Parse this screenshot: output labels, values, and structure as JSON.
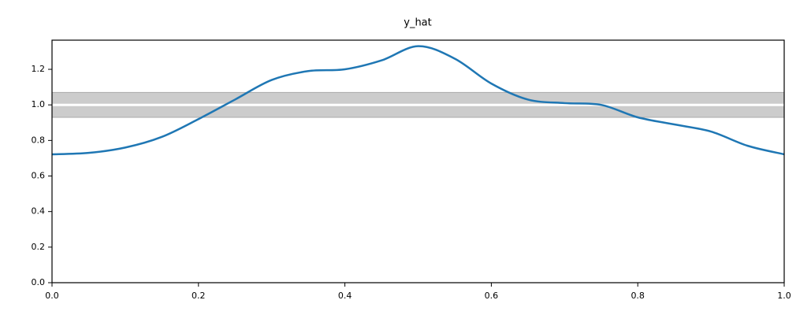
{
  "chart_data": {
    "type": "line",
    "title": "y_hat",
    "x": [
      0,
      0.05,
      0.1,
      0.15,
      0.2,
      0.25,
      0.3,
      0.35,
      0.4,
      0.45,
      0.5,
      0.55,
      0.6,
      0.65,
      0.7,
      0.75,
      0.8,
      0.85,
      0.9,
      0.95,
      1.0
    ],
    "series": [
      {
        "color": "#1f77b4",
        "values": [
          0.722,
          0.73,
          0.76,
          0.82,
          0.92,
          1.03,
          1.14,
          1.19,
          1.2,
          1.25,
          1.33,
          1.26,
          1.12,
          1.03,
          1.01,
          1.0,
          0.93,
          0.89,
          0.85,
          0.77,
          0.722
        ]
      }
    ],
    "band": [
      0.93,
      1.07
    ],
    "band_color": "#cccccc",
    "reference": 1,
    "reference_color": "#ffffff",
    "xlim": [
      0,
      1
    ],
    "ylim": [
      0,
      1.364
    ],
    "xticks": [
      {
        "value": 0,
        "label": "0.0"
      },
      0.2,
      0.4,
      0.6,
      0.8,
      {
        "value": 1,
        "label": "1.0"
      }
    ],
    "yticks": [
      {
        "value": 0,
        "label": "0.0"
      },
      0.2,
      0.4,
      0.6,
      0.8,
      {
        "value": 1,
        "label": "1.0"
      },
      1.2
    ],
    "grid": false
  }
}
